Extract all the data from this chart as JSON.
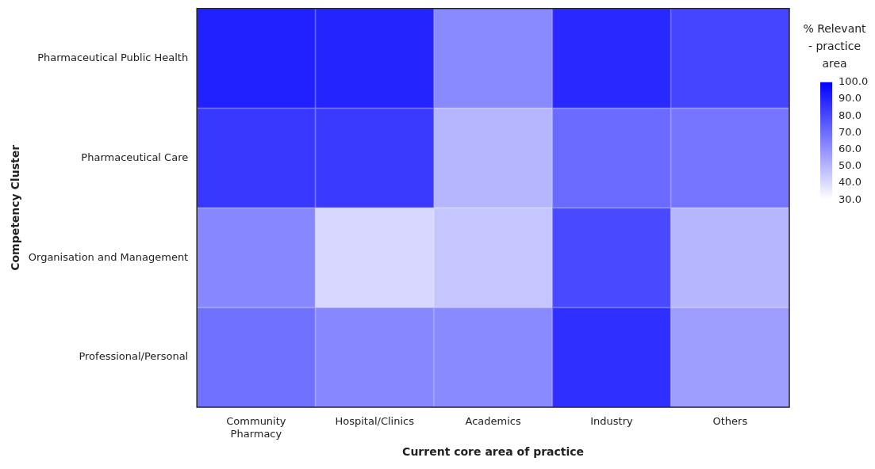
{
  "chart_data": {
    "type": "heatmap",
    "xlabel": "Current core area of practice",
    "ylabel": "Competency Cluster",
    "clabel": "% Relevant - practice area",
    "categories": [
      "Community Pharmacy",
      "Hospital/Clinics",
      "Academics",
      "Industry",
      "Others"
    ],
    "y_categories": [
      "Pharmaceutical Public Health",
      "Pharmaceutical Care",
      "Organisation and Management",
      "Professional/Personal"
    ],
    "cells": [
      [
        91,
        90,
        62,
        89,
        81
      ],
      [
        85,
        84,
        50,
        71,
        68
      ],
      [
        63,
        41,
        46,
        80,
        50
      ],
      [
        69,
        63,
        62,
        87,
        57
      ]
    ],
    "clim": [
      30,
      100
    ],
    "cticks": [
      {
        "value": 30,
        "label": "30.0"
      },
      {
        "value": 40,
        "label": "40.0"
      },
      {
        "value": 50,
        "label": "50.0"
      },
      {
        "value": 60,
        "label": "60.0"
      },
      {
        "value": 70,
        "label": "70.0"
      },
      {
        "value": 80,
        "label": "80.0"
      },
      {
        "value": 90,
        "label": "90.0"
      },
      {
        "value": 100,
        "label": "100.0"
      }
    ]
  }
}
